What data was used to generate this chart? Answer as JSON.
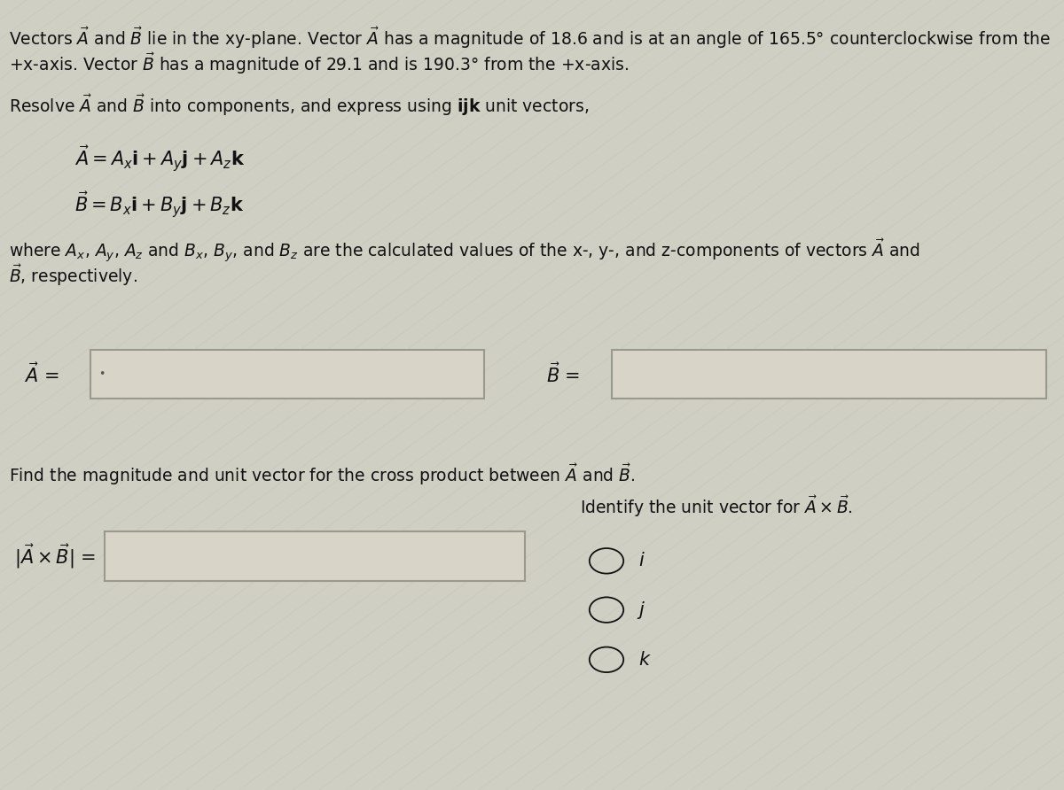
{
  "background_color": "#d0cfc4",
  "box_fill_color": "#d8d4c8",
  "box_edge_color": "#999990",
  "text_color": "#111111",
  "font_size_body": 13.5,
  "font_size_eq": 15,
  "line1": "Vectors $\\vec{A}$ and $\\vec{B}$ lie in the xy-plane. Vector $\\vec{A}$ has a magnitude of 18.6 and is at an angle of 165.5° counterclockwise from the",
  "line2": "+x-axis. Vector $\\vec{B}$ has a magnitude of 29.1 and is 190.3° from the +x-axis.",
  "resolve_line": "Resolve $\\vec{A}$ and $\\vec{B}$ into components, and express using $\\mathbf{ijk}$ unit vectors,",
  "eq_A": "$\\vec{A} = A_x\\mathrm{i} + A_y\\mathrm{j} + A_z\\mathrm{k}$",
  "eq_B": "$\\vec{B} = B_x\\mathrm{i} + B_y\\mathrm{j} + B_z\\mathrm{k}$",
  "where_line1": "where $A_x$, $A_y$, $A_z$ and $B_x$, $B_y$, and $B_z$ are the calculated values of the x-, y-, and z-components of vectors $\\vec{A}$ and",
  "where_line2": "$\\vec{B}$, respectively.",
  "find_line": "Find the magnitude and unit vector for the cross product between $\\vec{A}$ and $\\vec{B}$.",
  "identify_line": "Identify the unit vector for $\\vec{A} \\times \\vec{B}$.",
  "radio_options": [
    "i",
    "j",
    "k"
  ]
}
